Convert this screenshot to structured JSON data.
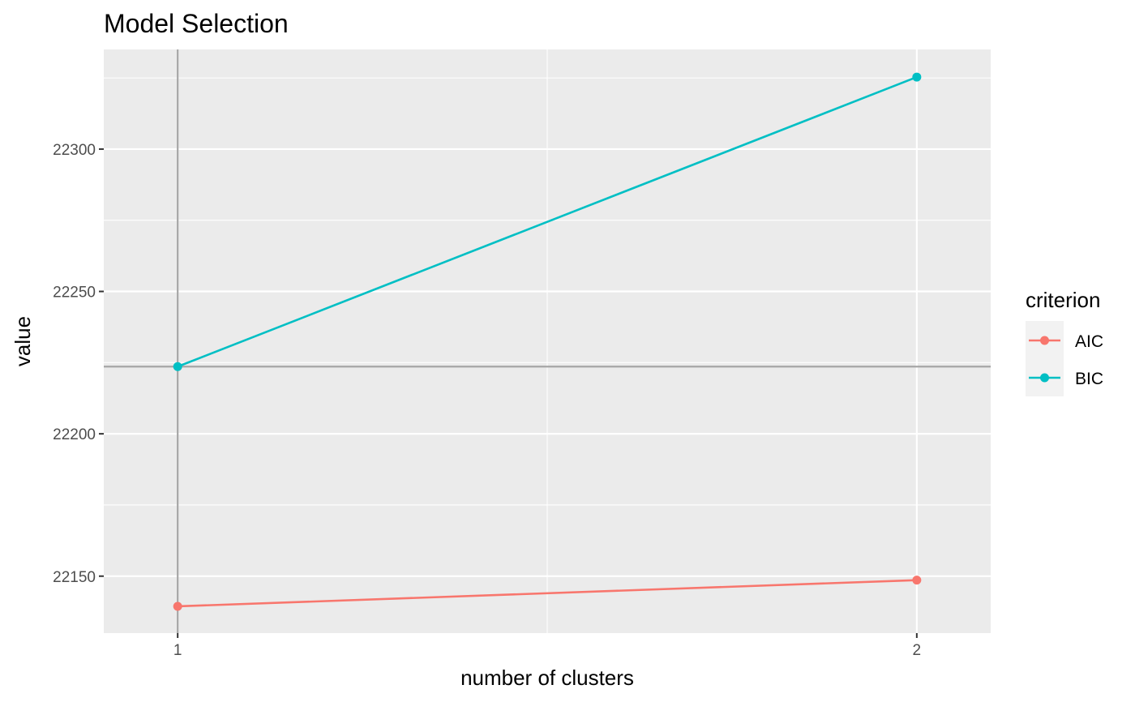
{
  "chart_data": {
    "type": "line",
    "title": "Model Selection",
    "xlabel": "number of clusters",
    "ylabel": "value",
    "x": [
      1,
      2
    ],
    "x_ticks": [
      "1",
      "2"
    ],
    "y_ticks": [
      "22150",
      "22200",
      "22250",
      "22300"
    ],
    "xlim": [
      0.9,
      2.1
    ],
    "ylim": [
      22130,
      22335
    ],
    "grid": true,
    "legend": {
      "title": "criterion",
      "placement": "right"
    },
    "series": [
      {
        "name": "AIC",
        "color": "#F8766D",
        "values": [
          22139.4,
          22148.6
        ]
      },
      {
        "name": "BIC",
        "color": "#00BFC4",
        "values": [
          22223.6,
          22325.3
        ]
      }
    ],
    "reference_lines": {
      "x": 1,
      "y": 22223.6,
      "color": "#a6a6a6"
    },
    "panel_background": "#ebebeb",
    "grid_color": "#ffffff"
  }
}
